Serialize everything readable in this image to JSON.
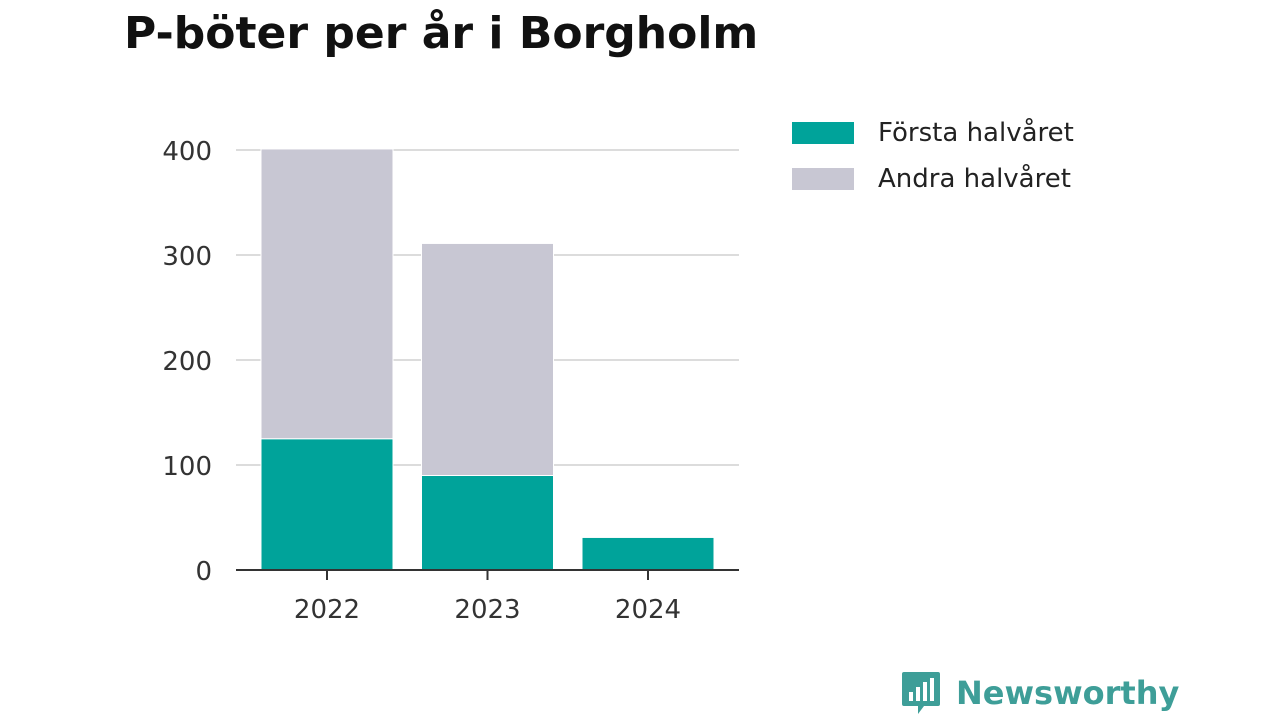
{
  "chart_data": {
    "type": "bar",
    "stacked": true,
    "title": "P-böter per år i Borgholm",
    "categories": [
      "2022",
      "2023",
      "2024"
    ],
    "series": [
      {
        "name": "Första halvåret",
        "values": [
          125,
          90,
          31
        ],
        "color": "#00a39a"
      },
      {
        "name": "Andra halvåret",
        "values": [
          276,
          221,
          0
        ],
        "color": "#c8c7d3"
      }
    ],
    "yticks": [
      0,
      100,
      200,
      300,
      400
    ],
    "ylim": [
      0,
      420
    ],
    "xlabel": "",
    "ylabel": "",
    "grid": true,
    "legend_position": "right"
  },
  "logo": {
    "text": "Newsworthy",
    "color": "#3e9e98"
  }
}
